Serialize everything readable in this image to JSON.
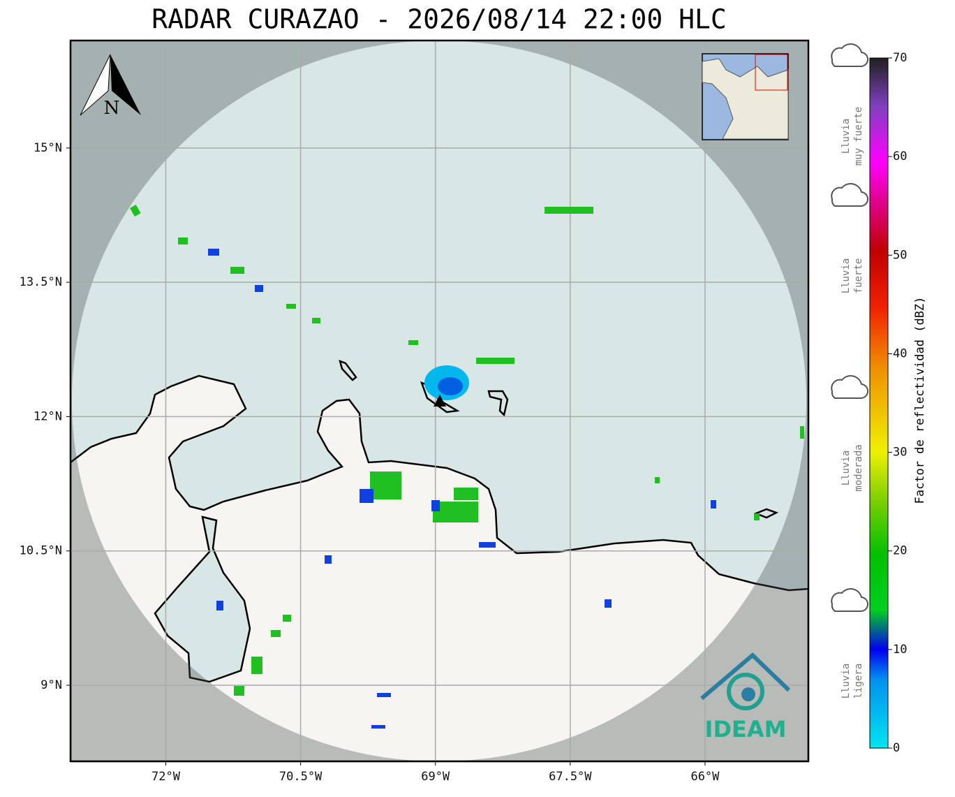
{
  "title": "RADAR CURAZAO - 2026/08/14 22:00 HLC",
  "map": {
    "xlim": [
      -73.06,
      -64.85
    ],
    "ylim": [
      8.15,
      16.2
    ],
    "xticks": [
      {
        "value": -72,
        "label": "72°W"
      },
      {
        "value": -70.5,
        "label": "70.5°W"
      },
      {
        "value": -69,
        "label": "69°W"
      },
      {
        "value": -67.5,
        "label": "67.5°W"
      },
      {
        "value": -66,
        "label": "66°W"
      }
    ],
    "yticks": [
      {
        "value": 9,
        "label": "9°N"
      },
      {
        "value": 10.5,
        "label": "10.5°N"
      },
      {
        "value": 12,
        "label": "12°N"
      },
      {
        "value": 13.5,
        "label": "13.5°N"
      },
      {
        "value": 15,
        "label": "15°N"
      }
    ],
    "north": "N",
    "logo": "IDEAM"
  },
  "colorbar": {
    "label": "Factor de reflectividad (dBZ)",
    "lim": [
      0,
      70
    ],
    "ticks": [
      0,
      10,
      20,
      30,
      40,
      50,
      60,
      70
    ]
  },
  "rain_legend": [
    [
      "Lluvia",
      "muy fuerte"
    ],
    [
      "Lluvia",
      "fuerte"
    ],
    [
      "Lluvia",
      "moderada"
    ],
    [
      "Lluvia",
      "ligera"
    ]
  ]
}
